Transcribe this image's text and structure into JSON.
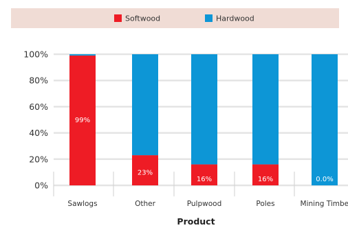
{
  "chart_data": {
    "type": "bar",
    "stacked": true,
    "categories": [
      "Sawlogs",
      "Other",
      "Pulpwood",
      "Poles",
      "Mining Timber"
    ],
    "series": [
      {
        "name": "Softwood",
        "values": [
          99,
          23,
          16,
          16,
          0
        ],
        "color": "#ee1c25"
      },
      {
        "name": "Hardwood",
        "values": [
          1,
          77,
          84,
          84,
          100
        ],
        "color": "#0d96d6"
      }
    ],
    "data_labels": [
      "99%",
      "23%",
      "16%",
      "16%",
      "0.0%"
    ],
    "data_label_positions": [
      50,
      10,
      5,
      5,
      5
    ],
    "ylim": [
      0,
      100
    ],
    "yticks": [
      0,
      20,
      40,
      60,
      80,
      100
    ],
    "ytick_labels": [
      "0%",
      "20%",
      "40%",
      "60%",
      "80%",
      "100%"
    ],
    "xlabel": "Product",
    "ylabel": "",
    "grid": true,
    "legend": "top",
    "colors": {
      "legend_bg": "#f0dcd5",
      "grid": "#e4e4e4",
      "separator": "#cfcfcf"
    }
  }
}
